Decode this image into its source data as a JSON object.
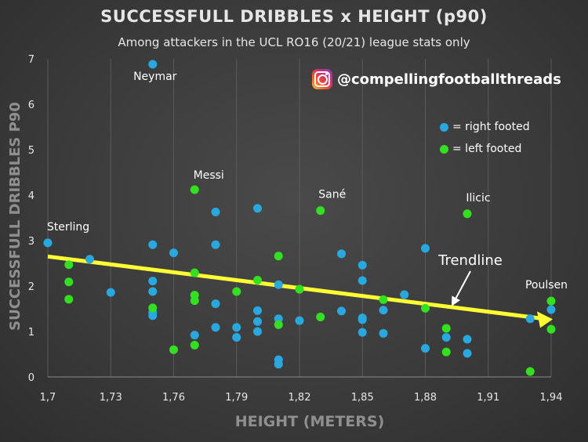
{
  "colors": {
    "right_footed": "#29a8e0",
    "left_footed": "#33e01f",
    "trendline": "#ffff33",
    "grid": "#5a5a5a",
    "text": "#e6e6e6"
  },
  "handle": {
    "text": "@compellingfootballthreads",
    "icon": "instagram-icon"
  },
  "chart_data": {
    "type": "scatter",
    "title": "SUCCESSFULL DRIBBLES x HEIGHT (p90)",
    "subtitle": "Among attackers in the UCL RO16 (20/21) league stats only",
    "xlabel": "HEIGHT (METERS)",
    "ylabel": "SUCCESSFULL DRIBBLES P90",
    "xlim": [
      1.7,
      1.94
    ],
    "ylim": [
      0,
      7
    ],
    "xticks": [
      "1,7",
      "1,73",
      "1,76",
      "1,79",
      "1,82",
      "1,85",
      "1,88",
      "1,91",
      "1,94"
    ],
    "yticks": [
      "0",
      "1",
      "2",
      "3",
      "4",
      "5",
      "6",
      "7"
    ],
    "grid": "vertical",
    "legend": [
      {
        "label": "= right footed",
        "series": "right_footed"
      },
      {
        "label": "= left footed",
        "series": "left_footed"
      }
    ],
    "legend_position": "top-right",
    "series": [
      {
        "key": "right_footed",
        "points": [
          [
            1.7,
            2.95
          ],
          [
            1.72,
            2.59
          ],
          [
            1.73,
            1.86
          ],
          [
            1.75,
            6.88
          ],
          [
            1.75,
            2.91
          ],
          [
            1.75,
            2.11
          ],
          [
            1.75,
            1.88
          ],
          [
            1.75,
            1.42
          ],
          [
            1.75,
            1.35
          ],
          [
            1.76,
            2.73
          ],
          [
            1.77,
            0.92
          ],
          [
            1.78,
            3.63
          ],
          [
            1.78,
            2.91
          ],
          [
            1.78,
            1.61
          ],
          [
            1.78,
            1.09
          ],
          [
            1.79,
            1.09
          ],
          [
            1.79,
            0.87
          ],
          [
            1.8,
            3.71
          ],
          [
            1.8,
            1.46
          ],
          [
            1.8,
            1.22
          ],
          [
            1.8,
            1.0
          ],
          [
            1.81,
            2.03
          ],
          [
            1.81,
            1.28
          ],
          [
            1.81,
            0.38
          ],
          [
            1.81,
            0.28
          ],
          [
            1.82,
            1.24
          ],
          [
            1.84,
            2.71
          ],
          [
            1.84,
            1.45
          ],
          [
            1.85,
            2.46
          ],
          [
            1.85,
            2.12
          ],
          [
            1.85,
            1.3
          ],
          [
            1.85,
            1.26
          ],
          [
            1.85,
            0.98
          ],
          [
            1.86,
            1.47
          ],
          [
            1.86,
            0.96
          ],
          [
            1.87,
            1.81
          ],
          [
            1.88,
            2.83
          ],
          [
            1.88,
            0.63
          ],
          [
            1.89,
            0.87
          ],
          [
            1.9,
            0.83
          ],
          [
            1.9,
            0.52
          ],
          [
            1.93,
            1.28
          ],
          [
            1.94,
            1.48
          ]
        ]
      },
      {
        "key": "left_footed",
        "points": [
          [
            1.71,
            2.47
          ],
          [
            1.71,
            2.09
          ],
          [
            1.71,
            1.71
          ],
          [
            1.75,
            1.52
          ],
          [
            1.76,
            0.6
          ],
          [
            1.77,
            4.12
          ],
          [
            1.77,
            2.29
          ],
          [
            1.77,
            1.8
          ],
          [
            1.77,
            1.68
          ],
          [
            1.77,
            0.7
          ],
          [
            1.79,
            1.88
          ],
          [
            1.8,
            2.13
          ],
          [
            1.81,
            2.66
          ],
          [
            1.81,
            1.15
          ],
          [
            1.82,
            1.93
          ],
          [
            1.83,
            3.66
          ],
          [
            1.83,
            1.32
          ],
          [
            1.86,
            1.7
          ],
          [
            1.88,
            1.51
          ],
          [
            1.89,
            1.07
          ],
          [
            1.89,
            0.55
          ],
          [
            1.9,
            3.59
          ],
          [
            1.93,
            0.12
          ],
          [
            1.94,
            1.67
          ],
          [
            1.94,
            1.05
          ]
        ]
      }
    ],
    "annotations": [
      {
        "text": "Neymar",
        "x": 1.75,
        "y": 6.88
      },
      {
        "text": "Messi",
        "x": 1.77,
        "y": 4.12
      },
      {
        "text": "Sané",
        "x": 1.83,
        "y": 3.66
      },
      {
        "text": "Ilicic",
        "x": 1.9,
        "y": 3.59
      },
      {
        "text": "Sterling",
        "x": 1.7,
        "y": 2.95
      },
      {
        "text": "Poulsen",
        "x": 1.94,
        "y": 1.67
      }
    ],
    "trendline": {
      "label": "Trendline",
      "x": [
        1.7,
        1.94
      ],
      "y": [
        2.65,
        1.27
      ]
    }
  }
}
